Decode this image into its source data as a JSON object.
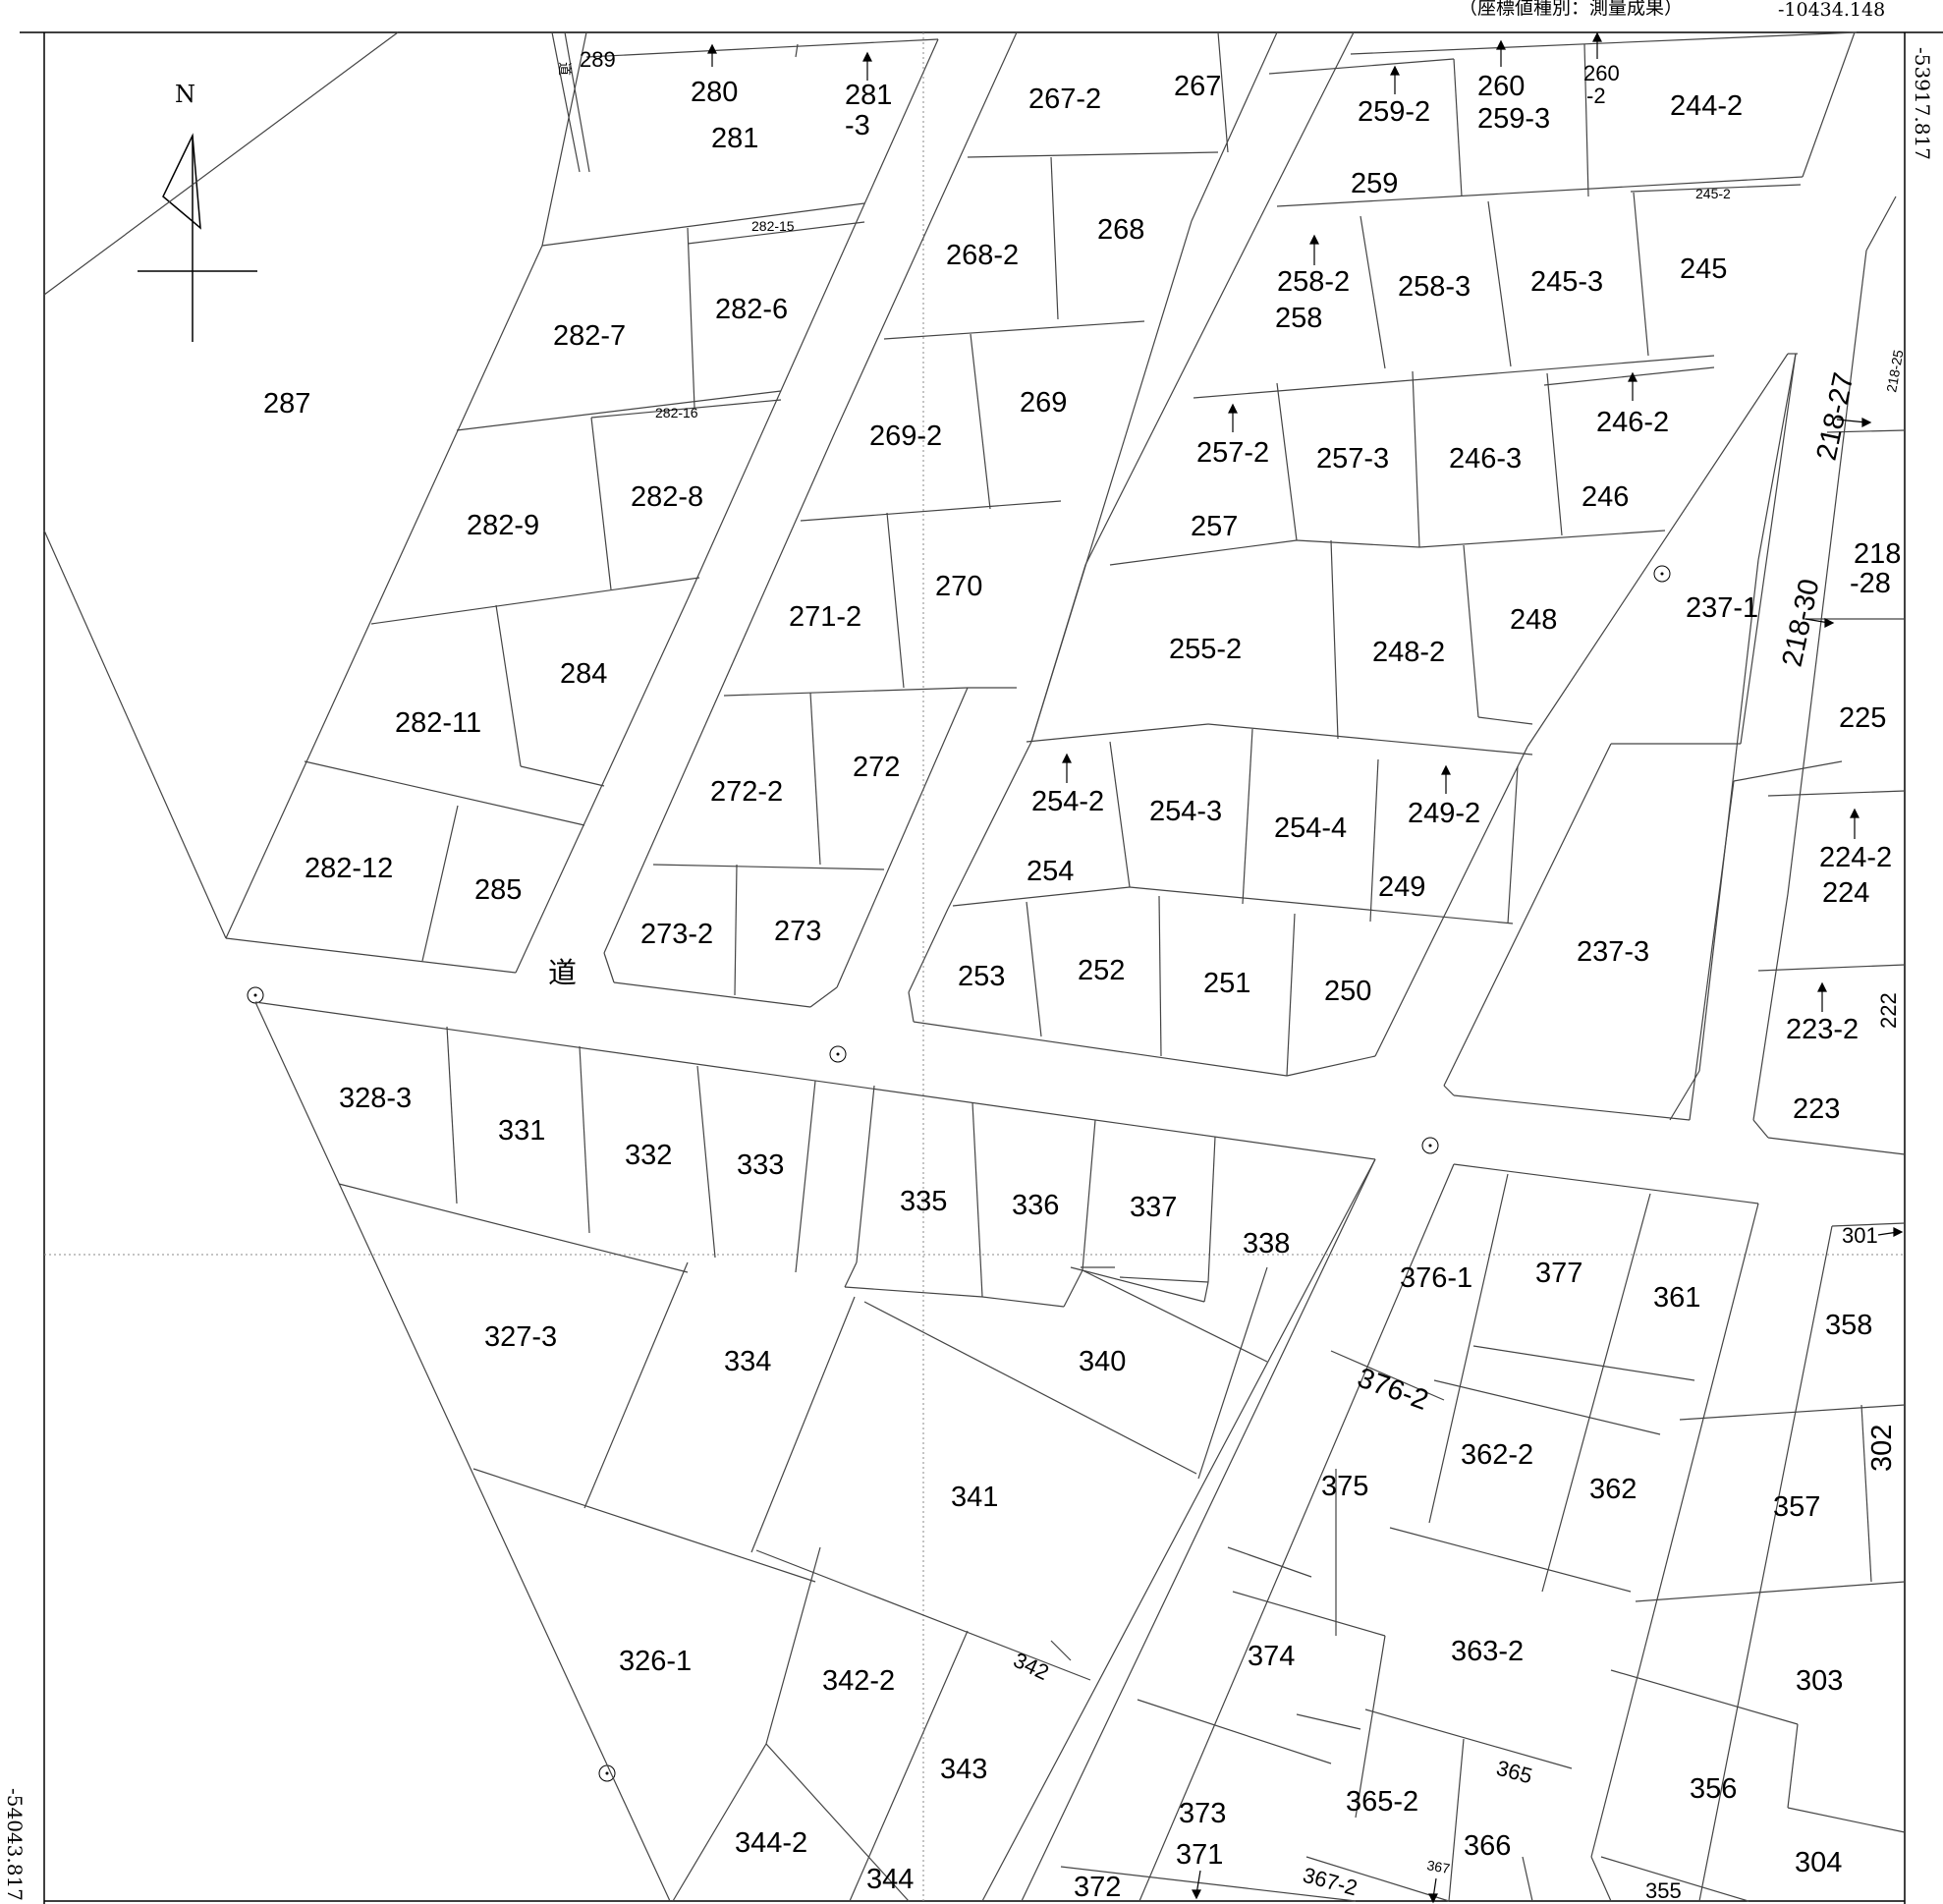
{
  "header": {
    "coordinate_type": "（座標値種別：測量成果）",
    "top_coordinate": "-10434.148"
  },
  "side_coordinates": {
    "right": "-53917.817",
    "left": "-54043.817"
  },
  "north_label": "N",
  "road_label": "道",
  "small_road_label": "道",
  "lot_labels": {
    "l289": "289",
    "l280": "280",
    "l281": "281",
    "l281_3a": "281",
    "l281_3b": "-3",
    "l267_2": "267-2",
    "l267": "267",
    "l259_2": "259-2",
    "l260": "260",
    "l259_3": "259-3",
    "l260_2a": "260",
    "l260_2b": "-2",
    "l244_2": "244-2",
    "l259": "259",
    "l282_15": "282-15",
    "l268_2": "268-2",
    "l268": "268",
    "l245_2": "245-2",
    "l258_2": "258-2",
    "l258": "258",
    "l258_3": "258-3",
    "l245_3": "245-3",
    "l245": "245",
    "l282_7": "282-7",
    "l282_6": "282-6",
    "l287": "287",
    "l269": "269",
    "l269_2": "269-2",
    "l282_16": "282-16",
    "l218_25": "218-25",
    "l218_27": "218-27",
    "l257_2": "257-2",
    "l257_3": "257-3",
    "l246_3": "246-3",
    "l246_2": "246-2",
    "l246": "246",
    "l282_9": "282-9",
    "l282_8": "282-8",
    "l257": "257",
    "l218_28a": "218",
    "l218_28b": "-28",
    "l270": "270",
    "l271_2": "271-2",
    "l248": "248",
    "l237_1": "237-1",
    "l255_2": "255-2",
    "l248_2": "248-2",
    "l218_30": "218-30",
    "l284": "284",
    "l282_11": "282-11",
    "l225": "225",
    "l272": "272",
    "l272_2": "272-2",
    "l254_2": "254-2",
    "l254_3": "254-3",
    "l254_4": "254-4",
    "l249_2": "249-2",
    "l224_2": "224-2",
    "l224": "224",
    "l254": "254",
    "l249": "249",
    "l282_12": "282-12",
    "l285": "285",
    "l273_2": "273-2",
    "l273": "273",
    "l237_3": "237-3",
    "l253": "253",
    "l252": "252",
    "l251": "251",
    "l250": "250",
    "l223_2": "223-2",
    "l222": "222",
    "l328_3": "328-3",
    "l331": "331",
    "l332": "332",
    "l333": "333",
    "l223": "223",
    "l335": "335",
    "l336": "336",
    "l337": "337",
    "l338": "338",
    "l376_1": "376-1",
    "l377": "377",
    "l301": "301",
    "l361": "361",
    "l358": "358",
    "l327_3": "327-3",
    "l334": "334",
    "l340": "340",
    "l376_2": "376-2",
    "l341": "341",
    "l375": "375",
    "l362_2": "362-2",
    "l362": "362",
    "l302": "302",
    "l357": "357",
    "l326_1": "326-1",
    "l342_2": "342-2",
    "l342": "342",
    "l374": "374",
    "l363_2": "363-2",
    "l303": "303",
    "l343": "343",
    "l373": "373",
    "l365_2": "365-2",
    "l365": "365",
    "l356": "356",
    "l344_2": "344-2",
    "l371": "371",
    "l366": "366",
    "l367": "367",
    "l304": "304",
    "l344": "344",
    "l372": "372",
    "l367_2": "367-2",
    "l355": "355"
  }
}
